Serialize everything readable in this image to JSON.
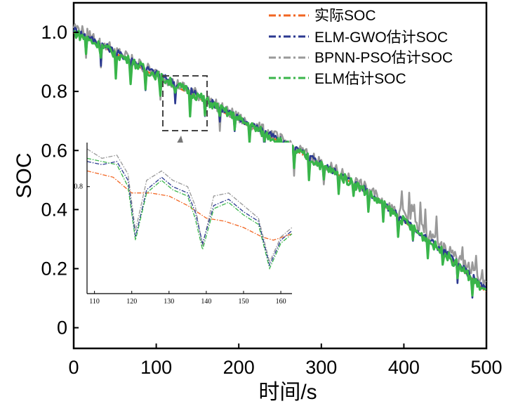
{
  "chart_data": {
    "type": "line",
    "title": "",
    "xlabel": "时间/s",
    "ylabel": "SOC",
    "xlim": [
      0,
      500
    ],
    "ylim": [
      -0.07,
      1.1
    ],
    "x_ticks": [
      "0",
      "100",
      "200",
      "300",
      "400",
      "500"
    ],
    "y_ticks": [
      "0",
      "0.2",
      "0.4",
      "0.6",
      "0.8",
      "1.0"
    ],
    "legend_position": "top-right",
    "series": [
      {
        "name": "实际SOC",
        "color": "#f26522",
        "style": "dash-dot",
        "x": [
          0,
          50,
          100,
          150,
          200,
          250,
          300,
          350,
          400,
          450,
          500
        ],
        "y": [
          1.0,
          0.93,
          0.85,
          0.78,
          0.7,
          0.63,
          0.55,
          0.47,
          0.36,
          0.25,
          0.12
        ]
      },
      {
        "name": "ELM-GWO估计SOC",
        "color": "#2b3990",
        "style": "dash-dot",
        "x": [
          0,
          50,
          100,
          150,
          200,
          250,
          300,
          350,
          400,
          450,
          500
        ],
        "y": [
          1.01,
          0.935,
          0.86,
          0.79,
          0.71,
          0.635,
          0.555,
          0.475,
          0.365,
          0.255,
          0.13
        ]
      },
      {
        "name": "BPNN-PSO估计SOC",
        "color": "#999999",
        "style": "dash-dot",
        "x": [
          0,
          50,
          100,
          150,
          200,
          250,
          300,
          350,
          400,
          450,
          500
        ],
        "y": [
          1.02,
          0.94,
          0.86,
          0.79,
          0.71,
          0.64,
          0.56,
          0.48,
          0.38,
          0.27,
          0.15
        ]
      },
      {
        "name": "ELM估计SOC",
        "color": "#39b54a",
        "style": "dash-dot",
        "x": [
          0,
          50,
          100,
          150,
          200,
          250,
          300,
          350,
          400,
          450,
          500
        ],
        "y": [
          1.0,
          0.93,
          0.855,
          0.785,
          0.705,
          0.63,
          0.55,
          0.47,
          0.36,
          0.25,
          0.12
        ]
      }
    ],
    "inset": {
      "xlim": [
        108,
        163
      ],
      "ylim": [
        0.63,
        0.87
      ],
      "x_ticks": [
        "110",
        "120",
        "130",
        "140",
        "150",
        "160"
      ],
      "y_ticks": [
        "0.8"
      ],
      "series": [
        {
          "name": "实际SOC",
          "x": [
            108,
            115,
            120,
            125,
            130,
            135,
            140,
            145,
            150,
            155,
            158,
            163
          ],
          "y": [
            0.825,
            0.815,
            0.79,
            0.79,
            0.785,
            0.77,
            0.75,
            0.745,
            0.735,
            0.72,
            0.715,
            0.725
          ]
        },
        {
          "name": "ELM-GWO估计SOC",
          "x": [
            108,
            112,
            116,
            119,
            121,
            124,
            128,
            131,
            135,
            137,
            139,
            142,
            146,
            150,
            154,
            157,
            160,
            163
          ],
          "y": [
            0.84,
            0.835,
            0.84,
            0.81,
            0.72,
            0.795,
            0.815,
            0.8,
            0.79,
            0.76,
            0.71,
            0.77,
            0.78,
            0.76,
            0.745,
            0.675,
            0.715,
            0.73
          ]
        },
        {
          "name": "BPNN-PSO估计SOC",
          "x": [
            108,
            112,
            116,
            119,
            121,
            124,
            128,
            131,
            135,
            137,
            139,
            142,
            146,
            150,
            154,
            157,
            160,
            163
          ],
          "y": [
            0.86,
            0.845,
            0.85,
            0.82,
            0.73,
            0.81,
            0.825,
            0.81,
            0.8,
            0.77,
            0.705,
            0.785,
            0.79,
            0.77,
            0.75,
            0.68,
            0.72,
            0.735
          ]
        },
        {
          "name": "ELM估计SOC",
          "x": [
            108,
            112,
            116,
            119,
            121,
            124,
            128,
            131,
            135,
            137,
            139,
            142,
            146,
            150,
            154,
            157,
            160,
            163
          ],
          "y": [
            0.845,
            0.84,
            0.835,
            0.8,
            0.715,
            0.79,
            0.81,
            0.795,
            0.785,
            0.75,
            0.7,
            0.765,
            0.775,
            0.755,
            0.74,
            0.67,
            0.71,
            0.725
          ]
        }
      ]
    }
  }
}
